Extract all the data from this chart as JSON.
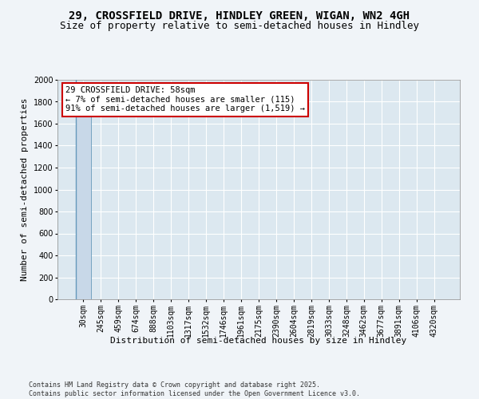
{
  "title_line1": "29, CROSSFIELD DRIVE, HINDLEY GREEN, WIGAN, WN2 4GH",
  "title_line2": "Size of property relative to semi-detached houses in Hindley",
  "xlabel": "Distribution of semi-detached houses by size in Hindley",
  "ylabel": "Number of semi-detached properties",
  "annotation_title": "29 CROSSFIELD DRIVE: 58sqm",
  "annotation_line2": "← 7% of semi-detached houses are smaller (115)",
  "annotation_line3": "91% of semi-detached houses are larger (1,519) →",
  "footer": "Contains HM Land Registry data © Crown copyright and database right 2025.\nContains public sector information licensed under the Open Government Licence v3.0.",
  "categories": [
    "30sqm",
    "245sqm",
    "459sqm",
    "674sqm",
    "888sqm",
    "1103sqm",
    "1317sqm",
    "1532sqm",
    "1746sqm",
    "1961sqm",
    "2175sqm",
    "2390sqm",
    "2604sqm",
    "2819sqm",
    "3033sqm",
    "3248sqm",
    "3462sqm",
    "3677sqm",
    "3891sqm",
    "4106sqm",
    "4320sqm"
  ],
  "values": [
    1900,
    3,
    2,
    1,
    1,
    1,
    1,
    1,
    0,
    0,
    0,
    0,
    0,
    0,
    0,
    0,
    0,
    0,
    0,
    0,
    0
  ],
  "bar_color": "#c8d8e8",
  "bar_edge_color": "#6699bb",
  "annotation_box_color": "#ffffff",
  "annotation_box_edge": "#cc0000",
  "property_line_color": "#6699bb",
  "ylim": [
    0,
    2000
  ],
  "yticks": [
    0,
    200,
    400,
    600,
    800,
    1000,
    1200,
    1400,
    1600,
    1800,
    2000
  ],
  "background_color": "#dce8f0",
  "fig_background_color": "#f0f4f8",
  "grid_color": "#ffffff",
  "title_fontsize": 10,
  "subtitle_fontsize": 9,
  "axis_label_fontsize": 8,
  "tick_fontsize": 7,
  "annotation_fontsize": 7.5,
  "footer_fontsize": 6
}
